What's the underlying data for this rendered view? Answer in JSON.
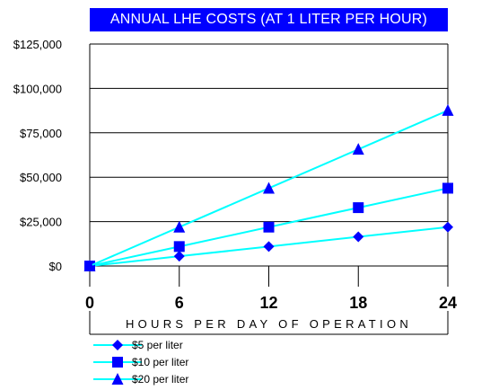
{
  "chart_data": {
    "type": "line",
    "title": "ANNUAL LHE COSTS (AT 1 LITER PER HOUR)",
    "xlabel": "HOURS PER DAY OF OPERATION",
    "ylabel": "",
    "x": [
      0,
      6,
      12,
      18,
      24
    ],
    "x_tick_labels": [
      "0",
      "6",
      "12",
      "18",
      "24"
    ],
    "ylim": [
      0,
      125000
    ],
    "y_ticks": [
      0,
      25000,
      50000,
      75000,
      100000,
      125000
    ],
    "y_tick_labels": [
      "$0",
      "$25,000",
      "$50,000",
      "$75,000",
      "$100,000",
      "$125,000"
    ],
    "grid": "horizontal",
    "legend_position": "bottom-left",
    "series": [
      {
        "name": "$5 per liter",
        "marker": "diamond",
        "color": "#00ffff",
        "marker_color": "#0000ff",
        "values": [
          0,
          5475,
          10950,
          16425,
          21900
        ]
      },
      {
        "name": "$10 per liter",
        "marker": "square",
        "color": "#00ffff",
        "marker_color": "#0000ff",
        "values": [
          0,
          10950,
          21900,
          32850,
          43800
        ]
      },
      {
        "name": "$20 per liter",
        "marker": "triangle",
        "color": "#00ffff",
        "marker_color": "#0000ff",
        "values": [
          0,
          21900,
          43800,
          65700,
          87600
        ]
      }
    ]
  }
}
